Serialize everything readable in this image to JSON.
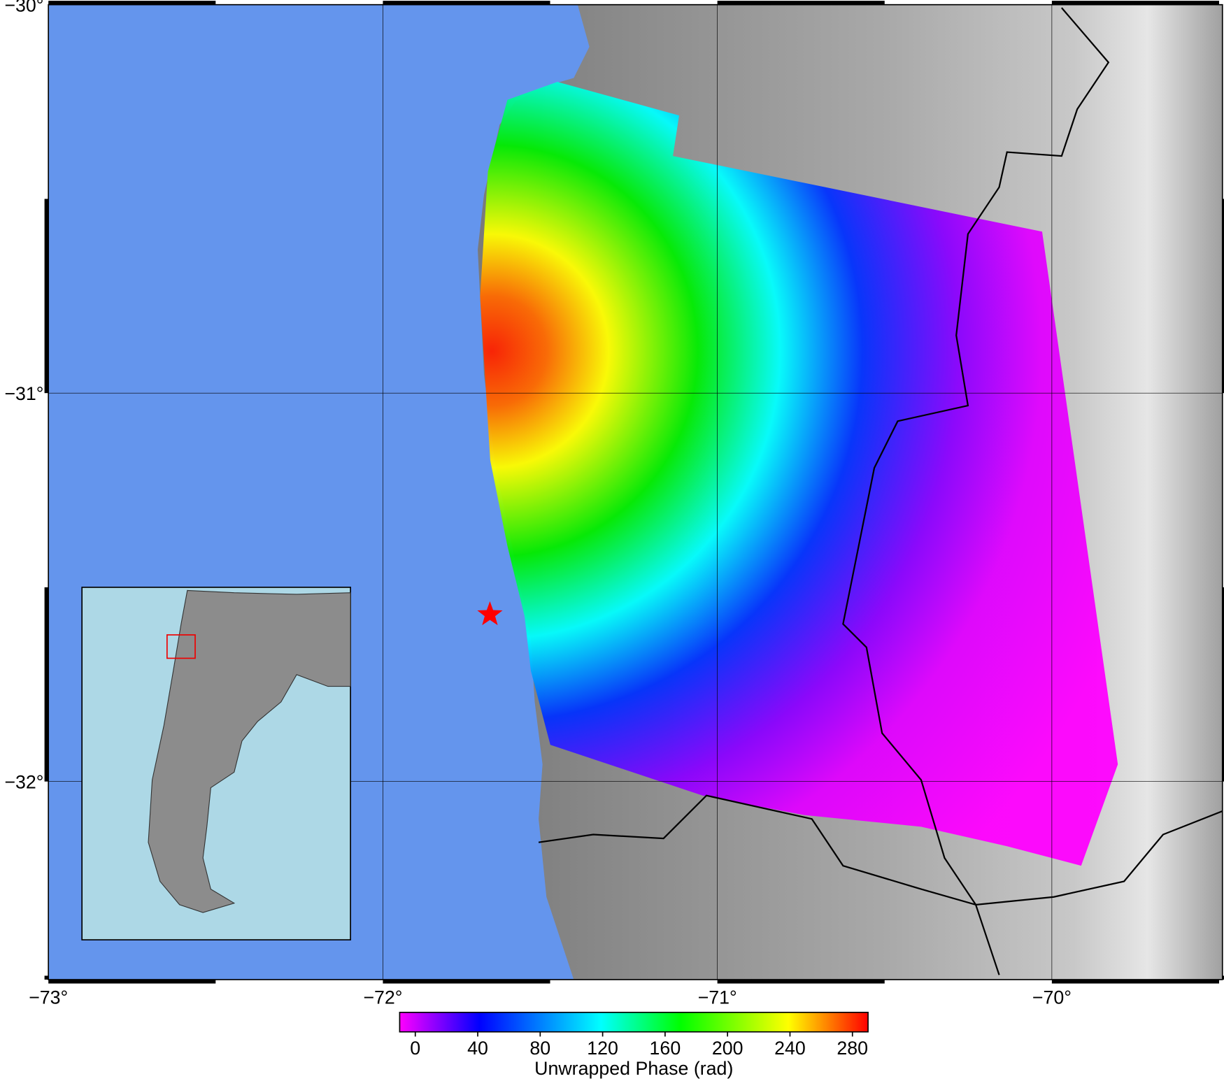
{
  "map": {
    "lon_range": [
      -73,
      -69.49
    ],
    "lat_range": [
      -32.51,
      -30
    ],
    "lon_ticks": [
      {
        "value": -73,
        "label": "−73°"
      },
      {
        "value": -72,
        "label": "−72°"
      },
      {
        "value": -71,
        "label": "−71°"
      },
      {
        "value": -70,
        "label": "−70°"
      }
    ],
    "lat_ticks": [
      {
        "value": -30,
        "label": "−30°"
      },
      {
        "value": -31,
        "label": "−31°"
      },
      {
        "value": -32,
        "label": "−32°"
      }
    ],
    "grid": true,
    "epicenter": {
      "lon": -71.68,
      "lat": -31.57,
      "color": "#ff0000"
    }
  },
  "colorbar": {
    "label": "Unwrapped Phase (rad)",
    "range": [
      -10,
      290
    ],
    "ticks": [
      0,
      40,
      80,
      120,
      160,
      200,
      240,
      280
    ]
  }
}
